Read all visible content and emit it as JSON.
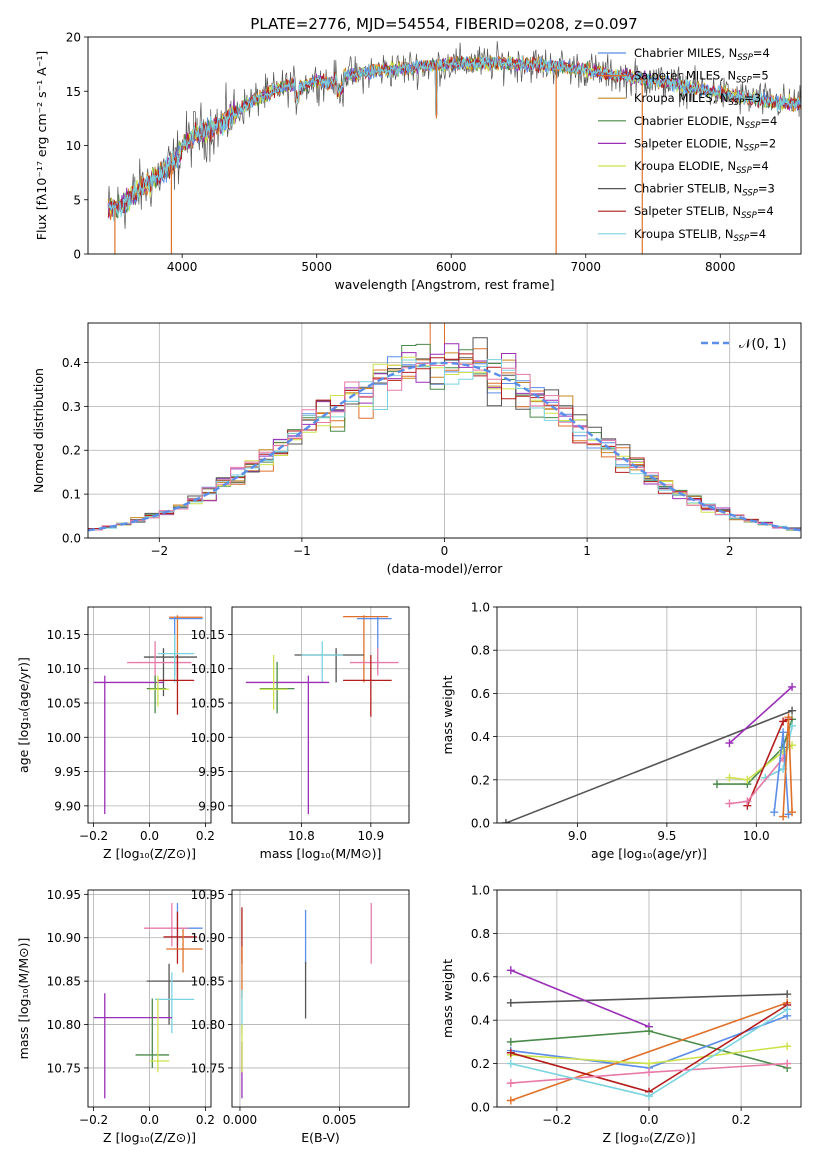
{
  "figure": {
    "title": "PLATE=2776, MJD=54554, FIBERID=0208, z=0.097"
  },
  "colors": {
    "chabrier_miles": "#5b8ee8",
    "salpeter_miles": "#e0712a",
    "kroupa_miles": "#c9871e",
    "chabrier_elodie": "#4a8a4a",
    "salpeter_elodie": "#9b2fb8",
    "kroupa_elodie": "#cde24a",
    "chabrier_stelib": "#555555",
    "salpeter_stelib": "#b51d1d",
    "kroupa_stelib": "#7ad4e0",
    "pink": "#e87aa8",
    "normal_curve": "#5b8ee8"
  },
  "chart_data": [
    {
      "id": "spectrum",
      "type": "line",
      "xlabel": "wavelength [Angstrom, rest frame]",
      "ylabel": "Flux [fλ10⁻¹⁷ erg cm⁻² s⁻¹ A⁻¹]",
      "xlim": [
        3300,
        8600
      ],
      "ylim": [
        0,
        20
      ],
      "xticks": [
        4000,
        5000,
        6000,
        7000,
        8000
      ],
      "yticks": [
        0,
        5,
        10,
        15,
        20
      ],
      "legend_position": "right",
      "legend": [
        {
          "label": "Chabrier MILES, N",
          "sub": "SSP",
          "suffix": "=4",
          "color_key": "chabrier_miles"
        },
        {
          "label": "Salpeter MILES, N",
          "sub": "SSP",
          "suffix": "=5",
          "color_key": "salpeter_miles"
        },
        {
          "label": "Kroupa MILES, N",
          "sub": "SSP",
          "suffix": "=3",
          "color_key": "kroupa_miles"
        },
        {
          "label": "Chabrier ELODIE, N",
          "sub": "SSP",
          "suffix": "=4",
          "color_key": "chabrier_elodie"
        },
        {
          "label": "Salpeter ELODIE, N",
          "sub": "SSP",
          "suffix": "=2",
          "color_key": "salpeter_elodie"
        },
        {
          "label": "Kroupa ELODIE, N",
          "sub": "SSP",
          "suffix": "=4",
          "color_key": "kroupa_elodie"
        },
        {
          "label": "Chabrier STELIB, N",
          "sub": "SSP",
          "suffix": "=3",
          "color_key": "chabrier_stelib"
        },
        {
          "label": "Salpeter STELIB, N",
          "sub": "SSP",
          "suffix": "=4",
          "color_key": "salpeter_stelib"
        },
        {
          "label": "Kroupa STELIB, N",
          "sub": "SSP",
          "suffix": "=4",
          "color_key": "kroupa_stelib"
        }
      ],
      "envelope": {
        "x": [
          3450,
          3550,
          3650,
          3750,
          3850,
          3950,
          4000,
          4100,
          4200,
          4300,
          4400,
          4500,
          4600,
          4700,
          4800,
          4900,
          5000,
          5100,
          5200,
          5300,
          5400,
          5500,
          5600,
          5700,
          5800,
          5900,
          6000,
          6200,
          6400,
          6600,
          6800,
          7000,
          7200,
          7400,
          7600,
          7800,
          8000,
          8200,
          8400,
          8600
        ],
        "y": [
          4.0,
          4.5,
          5.5,
          6.5,
          7.5,
          8.5,
          10.0,
          11.0,
          11.5,
          12.0,
          13.0,
          14.0,
          14.5,
          15.2,
          15.5,
          15.5,
          16.0,
          15.8,
          16.5,
          16.5,
          16.8,
          17.0,
          17.0,
          17.2,
          17.3,
          17.4,
          17.5,
          17.6,
          17.6,
          17.5,
          17.3,
          17.0,
          16.5,
          16.2,
          15.8,
          15.3,
          14.8,
          14.3,
          14.0,
          13.8
        ]
      },
      "dips": [
        {
          "x": 3500,
          "y": 0
        },
        {
          "x": 3920,
          "y": 0
        },
        {
          "x": 5890,
          "y": 12.5
        },
        {
          "x": 6780,
          "y": 0
        },
        {
          "x": 7420,
          "y": 0
        }
      ]
    },
    {
      "id": "residuals",
      "type": "histogram",
      "xlabel": "(data-model)/error",
      "ylabel": "Normed distribution",
      "xlim": [
        -2.5,
        2.5
      ],
      "ylim": [
        0,
        0.49
      ],
      "xticks": [
        -2,
        -1,
        0,
        1,
        2
      ],
      "yticks": [
        0.0,
        0.1,
        0.2,
        0.3,
        0.4
      ],
      "grid": true,
      "legend_position": "top-right",
      "curve_label": "𝒩(0, 1)",
      "bin_width": 0.1
    },
    {
      "id": "age_vs_Z",
      "type": "errorbar",
      "xlabel": "Z [log₁₀(Z/Z⊙)]",
      "ylabel": "age  [log₁₀(age/yr)]",
      "xlim": [
        -0.22,
        0.22
      ],
      "ylim": [
        9.875,
        10.19
      ],
      "xticks": [
        -0.2,
        0.0,
        0.2
      ],
      "yticks": [
        9.9,
        9.95,
        10.0,
        10.05,
        10.1,
        10.15
      ],
      "grid": true,
      "points": [
        {
          "x": 0.1,
          "xlo": 0.07,
          "xhi": 0.19,
          "y": 10.175,
          "ylo": 10.08,
          "yhi": 10.178,
          "color_key": "salpeter_miles"
        },
        {
          "x": 0.09,
          "xlo": 0.07,
          "xhi": 0.19,
          "y": 10.173,
          "ylo": 10.09,
          "yhi": 10.176,
          "color_key": "chabrier_miles"
        },
        {
          "x": 0.05,
          "xlo": -0.02,
          "xhi": 0.17,
          "y": 10.117,
          "ylo": 10.06,
          "yhi": 10.13,
          "color_key": "chabrier_stelib"
        },
        {
          "x": 0.02,
          "xlo": -0.08,
          "xhi": 0.15,
          "y": 10.109,
          "ylo": 10.07,
          "yhi": 10.14,
          "color_key": "pink"
        },
        {
          "x": 0.09,
          "xlo": 0.03,
          "xhi": 0.16,
          "y": 10.122,
          "ylo": 10.08,
          "yhi": 10.15,
          "color_key": "kroupa_stelib"
        },
        {
          "x": 0.1,
          "xlo": 0.03,
          "xhi": 0.16,
          "y": 10.083,
          "ylo": 10.033,
          "yhi": 10.12,
          "color_key": "salpeter_stelib"
        },
        {
          "x": -0.16,
          "xlo": -0.2,
          "xhi": 0.05,
          "y": 10.08,
          "ylo": 9.888,
          "yhi": 10.09,
          "color_key": "salpeter_elodie"
        },
        {
          "x": 0.02,
          "xlo": -0.01,
          "xhi": 0.06,
          "y": 10.071,
          "ylo": 10.035,
          "yhi": 10.09,
          "color_key": "chabrier_elodie"
        },
        {
          "x": 0.03,
          "xlo": 0.0,
          "xhi": 0.07,
          "y": 10.07,
          "ylo": 10.045,
          "yhi": 10.09,
          "color_key": "kroupa_elodie"
        }
      ]
    },
    {
      "id": "age_vs_mass",
      "type": "errorbar",
      "xlabel": "mass [log₁₀(M/M⊙)]",
      "ylabel": "",
      "xlim": [
        10.7,
        10.955
      ],
      "ylim": [
        9.875,
        10.19
      ],
      "xticks": [
        10.8,
        10.9
      ],
      "xticklabels": [
        "10.8",
        "10.9"
      ],
      "yticks": [
        9.9,
        9.95,
        10.0,
        10.05,
        10.1,
        10.15
      ],
      "grid": true,
      "points": [
        {
          "x": 10.89,
          "xlo": 10.86,
          "xhi": 10.925,
          "y": 10.176,
          "ylo": 10.08,
          "yhi": 10.178,
          "color_key": "salpeter_miles"
        },
        {
          "x": 10.91,
          "xlo": 10.88,
          "xhi": 10.93,
          "y": 10.173,
          "ylo": 10.1,
          "yhi": 10.176,
          "color_key": "chabrier_miles"
        },
        {
          "x": 10.85,
          "xlo": 10.79,
          "xhi": 10.89,
          "y": 10.12,
          "ylo": 10.08,
          "yhi": 10.13,
          "color_key": "chabrier_stelib"
        },
        {
          "x": 10.91,
          "xlo": 10.87,
          "xhi": 10.94,
          "y": 10.109,
          "ylo": 10.09,
          "yhi": 10.13,
          "color_key": "pink"
        },
        {
          "x": 10.83,
          "xlo": 10.8,
          "xhi": 10.86,
          "y": 10.12,
          "ylo": 10.08,
          "yhi": 10.14,
          "color_key": "kroupa_stelib"
        },
        {
          "x": 10.9,
          "xlo": 10.86,
          "xhi": 10.93,
          "y": 10.083,
          "ylo": 10.03,
          "yhi": 10.12,
          "color_key": "salpeter_stelib"
        },
        {
          "x": 10.81,
          "xlo": 10.72,
          "xhi": 10.84,
          "y": 10.08,
          "ylo": 9.888,
          "yhi": 10.09,
          "color_key": "salpeter_elodie"
        },
        {
          "x": 10.765,
          "xlo": 10.74,
          "xhi": 10.79,
          "y": 10.071,
          "ylo": 10.035,
          "yhi": 10.11,
          "color_key": "chabrier_elodie"
        },
        {
          "x": 10.76,
          "xlo": 10.74,
          "xhi": 10.78,
          "y": 10.07,
          "ylo": 10.04,
          "yhi": 10.12,
          "color_key": "kroupa_elodie"
        }
      ]
    },
    {
      "id": "weight_vs_age",
      "type": "line",
      "xlabel": "age  [log₁₀(age/yr)]",
      "ylabel": "mass weight",
      "xlim": [
        8.55,
        10.25
      ],
      "ylim": [
        0,
        1.0
      ],
      "xticks": [
        9.0,
        9.5,
        10.0
      ],
      "yticks": [
        0.0,
        0.2,
        0.4,
        0.6,
        0.8,
        1.0
      ],
      "grid": true,
      "series": [
        {
          "color_key": "chabrier_stelib",
          "x": [
            8.6,
            10.2
          ],
          "y": [
            0.0,
            0.52
          ]
        },
        {
          "color_key": "salpeter_elodie",
          "x": [
            9.85,
            10.2
          ],
          "y": [
            0.37,
            0.63
          ]
        },
        {
          "color_key": "chabrier_elodie",
          "x": [
            9.78,
            9.95,
            10.15,
            10.2
          ],
          "y": [
            0.18,
            0.18,
            0.35,
            0.48
          ]
        },
        {
          "color_key": "kroupa_elodie",
          "x": [
            9.85,
            9.95,
            10.15,
            10.2
          ],
          "y": [
            0.21,
            0.2,
            0.33,
            0.36
          ]
        },
        {
          "color_key": "salpeter_stelib",
          "x": [
            9.95,
            10.15,
            10.18
          ],
          "y": [
            0.08,
            0.47,
            0.48
          ]
        },
        {
          "color_key": "kroupa_stelib",
          "x": [
            10.05,
            10.15,
            10.2
          ],
          "y": [
            0.21,
            0.25,
            0.45
          ]
        },
        {
          "color_key": "pink",
          "x": [
            9.85,
            9.95,
            10.15
          ],
          "y": [
            0.09,
            0.1,
            0.3
          ]
        },
        {
          "color_key": "chabrier_miles",
          "x": [
            10.1,
            10.15,
            10.18
          ],
          "y": [
            0.05,
            0.42,
            0.04
          ]
        },
        {
          "color_key": "salpeter_miles",
          "x": [
            10.15,
            10.18,
            10.2
          ],
          "y": [
            0.03,
            0.49,
            0.05
          ]
        }
      ]
    },
    {
      "id": "mass_vs_Z",
      "type": "errorbar",
      "xlabel": "Z [log₁₀(Z/Z⊙)]",
      "ylabel": "mass [log₁₀(M/M⊙)]",
      "xlim": [
        -0.22,
        0.22
      ],
      "ylim": [
        10.705,
        10.955
      ],
      "xticks": [
        -0.2,
        0.0,
        0.2
      ],
      "yticks": [
        10.75,
        10.8,
        10.85,
        10.9,
        10.95
      ],
      "grid": true,
      "points": [
        {
          "x": 0.1,
          "xlo": 0.09,
          "xhi": 0.19,
          "y": 10.911,
          "ylo": 10.89,
          "yhi": 10.94,
          "color_key": "chabrier_miles"
        },
        {
          "x": 0.08,
          "xlo": -0.02,
          "xhi": 0.14,
          "y": 10.911,
          "ylo": 10.89,
          "yhi": 10.94,
          "color_key": "pink"
        },
        {
          "x": 0.1,
          "xlo": 0.05,
          "xhi": 0.17,
          "y": 10.901,
          "ylo": 10.87,
          "yhi": 10.93,
          "color_key": "salpeter_stelib"
        },
        {
          "x": 0.12,
          "xlo": 0.06,
          "xhi": 0.19,
          "y": 10.887,
          "ylo": 10.86,
          "yhi": 10.91,
          "color_key": "salpeter_miles"
        },
        {
          "x": 0.07,
          "xlo": -0.01,
          "xhi": 0.17,
          "y": 10.85,
          "ylo": 10.8,
          "yhi": 10.87,
          "color_key": "chabrier_stelib"
        },
        {
          "x": 0.08,
          "xlo": 0.02,
          "xhi": 0.16,
          "y": 10.829,
          "ylo": 10.79,
          "yhi": 10.86,
          "color_key": "kroupa_stelib"
        },
        {
          "x": -0.16,
          "xlo": -0.2,
          "xhi": 0.08,
          "y": 10.808,
          "ylo": 10.715,
          "yhi": 10.836,
          "color_key": "salpeter_elodie"
        },
        {
          "x": 0.01,
          "xlo": -0.05,
          "xhi": 0.07,
          "y": 10.765,
          "ylo": 10.75,
          "yhi": 10.83,
          "color_key": "chabrier_elodie"
        },
        {
          "x": 0.03,
          "xlo": 0.0,
          "xhi": 0.07,
          "y": 10.758,
          "ylo": 10.745,
          "yhi": 10.83,
          "color_key": "kroupa_elodie"
        }
      ]
    },
    {
      "id": "mass_vs_ebv",
      "type": "errorbar",
      "xlabel": "E(B-V)",
      "ylabel": "",
      "xlim": [
        -0.0004,
        0.0085
      ],
      "ylim": [
        10.705,
        10.955
      ],
      "xticks": [
        0.0,
        0.005
      ],
      "xticklabels": [
        "0.000",
        "0.005"
      ],
      "yticks": [
        10.75,
        10.8,
        10.85,
        10.9,
        10.95
      ],
      "grid": true,
      "points": [
        {
          "x": 0.0001,
          "y": 10.9,
          "ylo": 10.87,
          "yhi": 10.935,
          "color_key": "salpeter_stelib"
        },
        {
          "x": 0.0001,
          "y": 10.86,
          "ylo": 10.83,
          "yhi": 10.89,
          "color_key": "salpeter_miles"
        },
        {
          "x": 0.0001,
          "y": 10.8,
          "ylo": 10.79,
          "yhi": 10.84,
          "color_key": "kroupa_stelib"
        },
        {
          "x": 0.0001,
          "y": 10.75,
          "ylo": 10.715,
          "yhi": 10.78,
          "color_key": "salpeter_elodie"
        },
        {
          "x": 0.0001,
          "y": 10.76,
          "ylo": 10.745,
          "yhi": 10.8,
          "color_key": "kroupa_elodie"
        },
        {
          "x": 0.0033,
          "y": 10.9,
          "ylo": 10.87,
          "yhi": 10.932,
          "color_key": "chabrier_miles"
        },
        {
          "x": 0.0033,
          "y": 10.85,
          "ylo": 10.807,
          "yhi": 10.872,
          "color_key": "chabrier_stelib"
        },
        {
          "x": 0.0066,
          "y": 10.91,
          "ylo": 10.87,
          "yhi": 10.94,
          "color_key": "pink"
        }
      ]
    },
    {
      "id": "weight_vs_Z",
      "type": "line",
      "xlabel": "Z [log₁₀(Z/Z⊙)]",
      "ylabel": "mass weight",
      "xlim": [
        -0.33,
        0.33
      ],
      "ylim": [
        0,
        1.0
      ],
      "xticks": [
        -0.2,
        0.0,
        0.2
      ],
      "yticks": [
        0.0,
        0.2,
        0.4,
        0.6,
        0.8,
        1.0
      ],
      "grid": true,
      "series": [
        {
          "color_key": "chabrier_stelib",
          "x": [
            -0.3,
            0.3
          ],
          "y": [
            0.48,
            0.52
          ]
        },
        {
          "color_key": "salpeter_elodie",
          "x": [
            -0.3,
            0.0
          ],
          "y": [
            0.63,
            0.37
          ]
        },
        {
          "color_key": "chabrier_elodie",
          "x": [
            -0.3,
            0.0,
            0.3
          ],
          "y": [
            0.3,
            0.35,
            0.18
          ]
        },
        {
          "color_key": "chabrier_miles",
          "x": [
            -0.3,
            0.0,
            0.3
          ],
          "y": [
            0.26,
            0.18,
            0.42
          ]
        },
        {
          "color_key": "salpeter_miles",
          "x": [
            -0.3,
            0.3
          ],
          "y": [
            0.03,
            0.48
          ]
        },
        {
          "color_key": "kroupa_elodie",
          "x": [
            -0.3,
            0.0,
            0.3
          ],
          "y": [
            0.24,
            0.2,
            0.28
          ]
        },
        {
          "color_key": "salpeter_stelib",
          "x": [
            -0.3,
            0.0,
            0.3
          ],
          "y": [
            0.25,
            0.07,
            0.47
          ]
        },
        {
          "color_key": "pink",
          "x": [
            -0.3,
            0.0,
            0.3
          ],
          "y": [
            0.11,
            0.16,
            0.2
          ]
        },
        {
          "color_key": "kroupa_stelib",
          "x": [
            -0.3,
            0.0,
            0.3
          ],
          "y": [
            0.2,
            0.05,
            0.45
          ]
        }
      ]
    }
  ]
}
